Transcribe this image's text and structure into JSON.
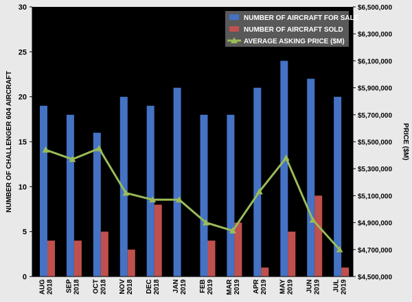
{
  "chart_data": {
    "type": "bar",
    "categories": [
      [
        "AUG",
        "2018"
      ],
      [
        "SEP",
        "2018"
      ],
      [
        "OCT",
        "2018"
      ],
      [
        "NOV",
        "2018"
      ],
      [
        "DEC",
        "2018"
      ],
      [
        "JAN",
        "2019"
      ],
      [
        "FEB",
        "2019"
      ],
      [
        "MAR",
        "2019"
      ],
      [
        "APR",
        "2019"
      ],
      [
        "MAY",
        "2019"
      ],
      [
        "JUN",
        "2019"
      ],
      [
        "JUL",
        "2019"
      ]
    ],
    "series": [
      {
        "name": "NUMBER OF AIRCRAFT FOR SALE",
        "kind": "bar",
        "axis": "left",
        "color": "#4472c4",
        "values": [
          19,
          18,
          16,
          20,
          19,
          21,
          18,
          18,
          21,
          24,
          22,
          20
        ]
      },
      {
        "name": "NUMBER OF AIRCRAFT SOLD",
        "kind": "bar",
        "axis": "left",
        "color": "#c0504d",
        "values": [
          4,
          4,
          5,
          3,
          8,
          0,
          4,
          6,
          1,
          5,
          9,
          1
        ]
      },
      {
        "name": "AVERAGE ASKING PRICE ($M)",
        "kind": "line",
        "axis": "right",
        "color": "#9bbb59",
        "values": [
          5440000,
          5370000,
          5450000,
          5120000,
          5070000,
          5070000,
          4900000,
          4840000,
          5130000,
          5380000,
          4920000,
          4700000
        ]
      }
    ],
    "ylabel": "NUMBER OF CHALLENGER 604 AIRCRAFT",
    "y2label": "PRICE ($M)",
    "ylim": [
      0,
      30
    ],
    "yticks": [
      0,
      5,
      10,
      15,
      20,
      25,
      30
    ],
    "y2lim": [
      4500000,
      6500000
    ],
    "y2ticks": [
      "$4,500,000",
      "$4,700,000",
      "$4,900,000",
      "$5,100,000",
      "$5,300,000",
      "$5,500,000",
      "$5,700,000",
      "$5,900,000",
      "$6,100,000",
      "$6,300,000",
      "$6,500,000"
    ],
    "grid": false,
    "legend": "top-right",
    "plot_background": "#000000"
  }
}
